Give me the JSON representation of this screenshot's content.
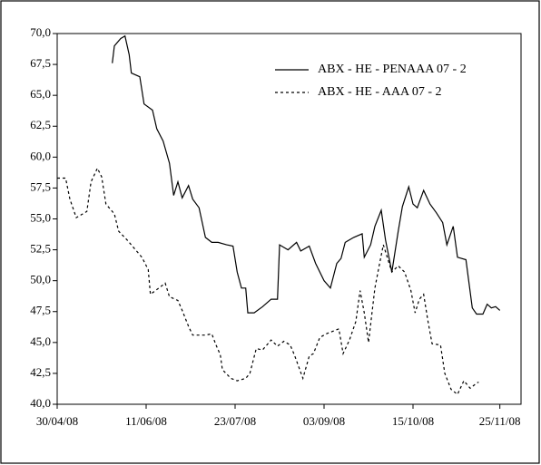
{
  "chart_data": {
    "type": "line",
    "xlim": [
      "2008-04-30",
      "2008-12-05"
    ],
    "xticks": [
      {
        "value": "2008-04-30",
        "label": "30/04/08"
      },
      {
        "value": "2008-06-11",
        "label": "11/06/08"
      },
      {
        "value": "2008-07-23",
        "label": "23/07/08"
      },
      {
        "value": "2008-09-03",
        "label": "03/09/08"
      },
      {
        "value": "2008-10-15",
        "label": "15/10/08"
      },
      {
        "value": "2008-11-25",
        "label": "25/11/08"
      }
    ],
    "ylim": [
      40,
      70
    ],
    "yticks": [
      {
        "value": 40,
        "label": "40,0"
      },
      {
        "value": 42.5,
        "label": "42,5"
      },
      {
        "value": 45,
        "label": "45,0"
      },
      {
        "value": 47.5,
        "label": "47,5"
      },
      {
        "value": 50,
        "label": "50,0"
      },
      {
        "value": 52.5,
        "label": "52,5"
      },
      {
        "value": 55,
        "label": "55,0"
      },
      {
        "value": 57.5,
        "label": "57,5"
      },
      {
        "value": 60,
        "label": "60,0"
      },
      {
        "value": 62.5,
        "label": "62,5"
      },
      {
        "value": 65,
        "label": "65,0"
      },
      {
        "value": 67.5,
        "label": "67,5"
      },
      {
        "value": 70,
        "label": "70,0"
      }
    ],
    "legend": "top-right",
    "series": [
      {
        "name": "ABX - HE - PENAAA 07 - 2",
        "color": "#000000",
        "line_style": "solid",
        "x": [
          "2008-05-26",
          "2008-05-27",
          "2008-05-30",
          "2008-06-01",
          "2008-06-03",
          "2008-06-04",
          "2008-06-08",
          "2008-06-10",
          "2008-06-14",
          "2008-06-16",
          "2008-06-19",
          "2008-06-22",
          "2008-06-24",
          "2008-06-26",
          "2008-06-28",
          "2008-07-01",
          "2008-07-03",
          "2008-07-06",
          "2008-07-09",
          "2008-07-12",
          "2008-07-15",
          "2008-07-19",
          "2008-07-22",
          "2008-07-24",
          "2008-07-26",
          "2008-07-28",
          "2008-07-29",
          "2008-08-01",
          "2008-08-05",
          "2008-08-09",
          "2008-08-12",
          "2008-08-13",
          "2008-08-17",
          "2008-08-21",
          "2008-08-23",
          "2008-08-27",
          "2008-08-30",
          "2008-09-03",
          "2008-09-06",
          "2008-09-09",
          "2008-09-11",
          "2008-09-13",
          "2008-09-17",
          "2008-09-21",
          "2008-09-22",
          "2008-09-25",
          "2008-09-27",
          "2008-09-30",
          "2008-10-02",
          "2008-10-05",
          "2008-10-08",
          "2008-10-10",
          "2008-10-13",
          "2008-10-15",
          "2008-10-17",
          "2008-10-20",
          "2008-10-23",
          "2008-10-26",
          "2008-10-29",
          "2008-10-31",
          "2008-11-03",
          "2008-11-05",
          "2008-11-09",
          "2008-11-12",
          "2008-11-14",
          "2008-11-17",
          "2008-11-19",
          "2008-11-21",
          "2008-11-23",
          "2008-11-25"
        ],
        "values": [
          67.6,
          69.0,
          69.6,
          69.8,
          68.3,
          66.8,
          66.5,
          64.3,
          63.8,
          62.3,
          61.3,
          59.5,
          56.9,
          58.0,
          56.7,
          57.7,
          56.6,
          55.9,
          53.5,
          53.1,
          53.1,
          52.9,
          52.8,
          50.7,
          49.4,
          49.4,
          47.4,
          47.4,
          47.9,
          48.5,
          48.5,
          52.9,
          52.5,
          53.1,
          52.4,
          52.8,
          51.4,
          50.0,
          49.4,
          51.4,
          51.8,
          53.1,
          53.5,
          53.8,
          51.9,
          52.9,
          54.4,
          55.7,
          53.3,
          50.7,
          54.0,
          56.0,
          57.6,
          56.2,
          55.9,
          57.3,
          56.2,
          55.5,
          54.7,
          52.9,
          54.4,
          51.9,
          51.7,
          47.8,
          47.3,
          47.3,
          48.1,
          47.8,
          47.9,
          47.6
        ]
      },
      {
        "name": "ABX - HE - AAA 07 - 2",
        "color": "#000000",
        "line_style": "dashed",
        "x": [
          "2008-04-30",
          "2008-05-04",
          "2008-05-06",
          "2008-05-09",
          "2008-05-11",
          "2008-05-14",
          "2008-05-16",
          "2008-05-19",
          "2008-05-21",
          "2008-05-23",
          "2008-05-27",
          "2008-05-29",
          "2008-06-02",
          "2008-06-06",
          "2008-06-09",
          "2008-06-12",
          "2008-06-13",
          "2008-06-17",
          "2008-06-20",
          "2008-06-22",
          "2008-06-26",
          "2008-06-28",
          "2008-07-01",
          "2008-07-03",
          "2008-07-06",
          "2008-07-09",
          "2008-07-12",
          "2008-07-14",
          "2008-07-16",
          "2008-07-17",
          "2008-07-21",
          "2008-07-24",
          "2008-07-28",
          "2008-07-30",
          "2008-08-02",
          "2008-08-05",
          "2008-08-09",
          "2008-08-12",
          "2008-08-15",
          "2008-08-18",
          "2008-08-20",
          "2008-08-24",
          "2008-08-27",
          "2008-08-29",
          "2008-09-01",
          "2008-09-04",
          "2008-09-07",
          "2008-09-10",
          "2008-09-12",
          "2008-09-15",
          "2008-09-18",
          "2008-09-20",
          "2008-09-22",
          "2008-09-24",
          "2008-09-27",
          "2008-09-29",
          "2008-10-01",
          "2008-10-05",
          "2008-10-08",
          "2008-10-11",
          "2008-10-14",
          "2008-10-16",
          "2008-10-18",
          "2008-10-20",
          "2008-10-22",
          "2008-10-24",
          "2008-10-28",
          "2008-10-30",
          "2008-11-02",
          "2008-11-05",
          "2008-11-08",
          "2008-11-11",
          "2008-11-14",
          "2008-11-15"
        ],
        "values": [
          58.3,
          58.3,
          56.6,
          55.1,
          55.3,
          55.6,
          58.0,
          59.1,
          58.4,
          56.2,
          55.4,
          54.0,
          53.3,
          52.5,
          51.9,
          50.9,
          48.9,
          49.4,
          49.8,
          48.7,
          48.4,
          47.6,
          46.3,
          45.6,
          45.6,
          45.6,
          45.7,
          44.8,
          44.0,
          42.8,
          42.1,
          41.9,
          42.1,
          42.5,
          44.5,
          44.4,
          45.2,
          44.7,
          45.1,
          44.8,
          44.0,
          42.1,
          43.9,
          44.1,
          45.4,
          45.7,
          45.9,
          46.1,
          44.1,
          45.2,
          46.7,
          49.2,
          47.4,
          45.0,
          49.4,
          51.2,
          52.9,
          50.7,
          51.2,
          50.7,
          49.2,
          47.4,
          48.5,
          48.9,
          46.8,
          44.9,
          44.8,
          42.5,
          41.2,
          40.8,
          41.9,
          41.3,
          41.7,
          41.8
        ]
      }
    ]
  }
}
